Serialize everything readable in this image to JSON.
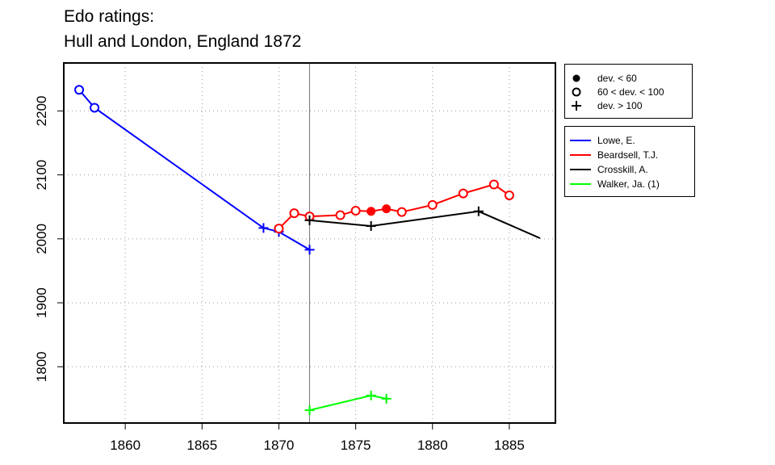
{
  "title_line1": "Edo ratings:",
  "title_line2": "Hull and London, England 1872",
  "legend_deviation": [
    {
      "marker": "filled-circle",
      "label": "dev. < 60"
    },
    {
      "marker": "open-circle",
      "label": "60 < dev. < 100"
    },
    {
      "marker": "plus",
      "label": "dev. > 100"
    }
  ],
  "legend_players": [
    {
      "label": "Lowe, E.",
      "color": "#0000ff"
    },
    {
      "label": "Beardsell, T.J.",
      "color": "#ff0000"
    },
    {
      "label": "Crosskill, A.",
      "color": "#000000"
    },
    {
      "label": "Walker, Ja. (1)",
      "color": "#00ff00"
    }
  ],
  "chart_data": {
    "type": "line",
    "title": "Edo ratings:\nHull and London, England 1872",
    "xlabel": "",
    "ylabel": "",
    "xlim": [
      1856.0,
      1888.0
    ],
    "ylim": [
      1712,
      2275
    ],
    "x_ticks": [
      1860,
      1865,
      1870,
      1875,
      1880,
      1885
    ],
    "y_ticks": [
      1800,
      1900,
      2000,
      2100,
      2200
    ],
    "grid": true,
    "vertical_reference_line": 1872,
    "legend_position": "right-outside",
    "series": [
      {
        "name": "Lowe, E.",
        "color": "#0000ff",
        "points": [
          {
            "x": 1857,
            "y": 2233,
            "marker": "open-circle"
          },
          {
            "x": 1858,
            "y": 2205,
            "marker": "open-circle"
          },
          {
            "x": 1869,
            "y": 2017,
            "marker": "plus"
          },
          {
            "x": 1870,
            "y": 2011,
            "marker": "plus"
          },
          {
            "x": 1872,
            "y": 1983,
            "marker": "plus"
          }
        ]
      },
      {
        "name": "Beardsell, T.J.",
        "color": "#ff0000",
        "points": [
          {
            "x": 1870,
            "y": 2016,
            "marker": "open-circle"
          },
          {
            "x": 1871,
            "y": 2040,
            "marker": "open-circle"
          },
          {
            "x": 1872,
            "y": 2035,
            "marker": "open-circle"
          },
          {
            "x": 1874,
            "y": 2037,
            "marker": "open-circle"
          },
          {
            "x": 1875,
            "y": 2044,
            "marker": "open-circle"
          },
          {
            "x": 1876,
            "y": 2043,
            "marker": "filled-circle"
          },
          {
            "x": 1877,
            "y": 2047,
            "marker": "filled-circle"
          },
          {
            "x": 1878,
            "y": 2042,
            "marker": "open-circle"
          },
          {
            "x": 1880,
            "y": 2053,
            "marker": "open-circle"
          },
          {
            "x": 1882,
            "y": 2071,
            "marker": "open-circle"
          },
          {
            "x": 1884,
            "y": 2085,
            "marker": "open-circle"
          },
          {
            "x": 1885,
            "y": 2068,
            "marker": "open-circle"
          }
        ]
      },
      {
        "name": "Crosskill, A.",
        "color": "#000000",
        "points": [
          {
            "x": 1872,
            "y": 2029,
            "marker": "plus"
          },
          {
            "x": 1876,
            "y": 2020,
            "marker": "plus"
          },
          {
            "x": 1883,
            "y": 2043,
            "marker": "plus"
          },
          {
            "x": 1887,
            "y": 2001,
            "marker": "none"
          }
        ]
      },
      {
        "name": "Walker, Ja. (1)",
        "color": "#00ff00",
        "points": [
          {
            "x": 1872,
            "y": 1732,
            "marker": "plus"
          },
          {
            "x": 1876,
            "y": 1755,
            "marker": "plus"
          },
          {
            "x": 1877,
            "y": 1750,
            "marker": "plus"
          }
        ]
      }
    ]
  }
}
